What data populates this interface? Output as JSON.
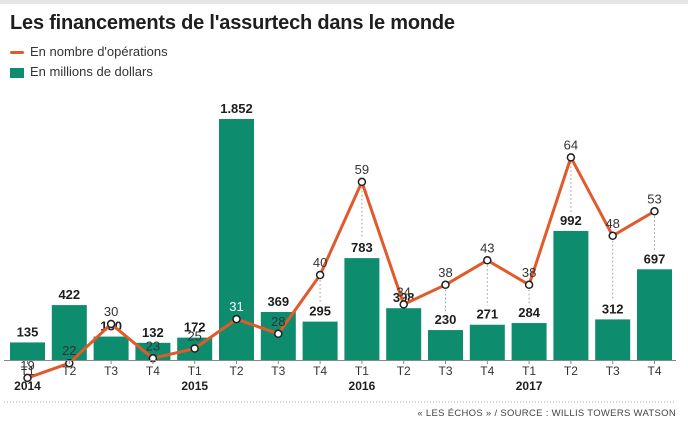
{
  "title": "Les financements de l'assurtech dans le monde",
  "legend": {
    "ops_label": "En nombre d'opérations",
    "millions_label": "En millions de dollars"
  },
  "source": "« LES ÉCHOS » / SOURCE : WILLIS TOWERS WATSON",
  "colors": {
    "bar": "#0e8c6e",
    "line": "#e05a2b",
    "text": "#1e1e1e",
    "grid": "#bdbdbd"
  },
  "chart_data": {
    "type": "bar",
    "categories": [
      "T1",
      "T2",
      "T3",
      "T4",
      "T1",
      "T2",
      "T3",
      "T4",
      "T1",
      "T2",
      "T3",
      "T4",
      "T1",
      "T2",
      "T3",
      "T4"
    ],
    "years": [
      "2014",
      "",
      "",
      "",
      "2015",
      "",
      "",
      "",
      "2016",
      "",
      "",
      "",
      "2017",
      "",
      "",
      ""
    ],
    "series": [
      {
        "name": "En millions de dollars",
        "type": "bar",
        "values": [
          135,
          422,
          180,
          132,
          172,
          1852,
          369,
          295,
          783,
          398,
          230,
          271,
          284,
          992,
          312,
          697
        ],
        "labels": [
          "135",
          "422",
          "180",
          "132",
          "172",
          "1.852",
          "369",
          "295",
          "783",
          "398",
          "230",
          "271",
          "284",
          "992",
          "312",
          "697"
        ]
      },
      {
        "name": "En nombre d'opérations",
        "type": "line",
        "values": [
          19,
          22,
          30,
          23,
          25,
          31,
          28,
          40,
          59,
          34,
          38,
          43,
          38,
          64,
          48,
          53
        ]
      }
    ],
    "legend_position": "top-left",
    "grid": false
  }
}
